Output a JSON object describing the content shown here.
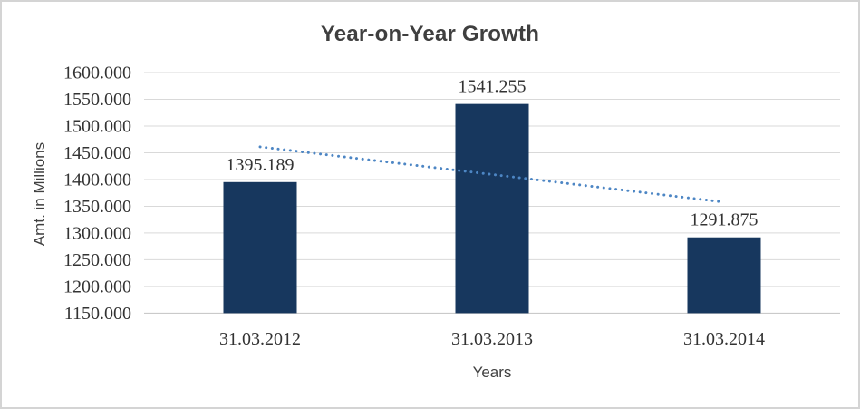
{
  "chart_data": {
    "type": "bar",
    "title": "Year-on-Year Growth",
    "categories": [
      "31.03.2012",
      "31.03.2013",
      "31.03.2014"
    ],
    "values": [
      1395.189,
      1541.255,
      1291.875
    ],
    "data_labels": [
      "1395.189",
      "1541.255",
      "1291.875"
    ],
    "xlabel": "Years",
    "ylabel": "Amt. in Millions",
    "ylim": [
      1150,
      1600
    ],
    "ytick_step": 50,
    "ytick_labels": [
      "1600.000",
      "1550.000",
      "1500.000",
      "1450.000",
      "1400.000",
      "1350.000",
      "1300.000",
      "1250.000",
      "1200.000",
      "1150.000"
    ],
    "grid": true,
    "legend": false,
    "trendline": {
      "type": "linear",
      "style": "dotted",
      "values": [
        1461.1,
        1357.78
      ]
    },
    "colors": {
      "bar": "#17375E",
      "trendline": "#4D86C4",
      "gridline": "#D9D9D9",
      "axis_line": "#C3C3C3",
      "title_text": "#3F3F3F",
      "axis_title_text": "#404040",
      "tick_text": "#333333"
    }
  }
}
